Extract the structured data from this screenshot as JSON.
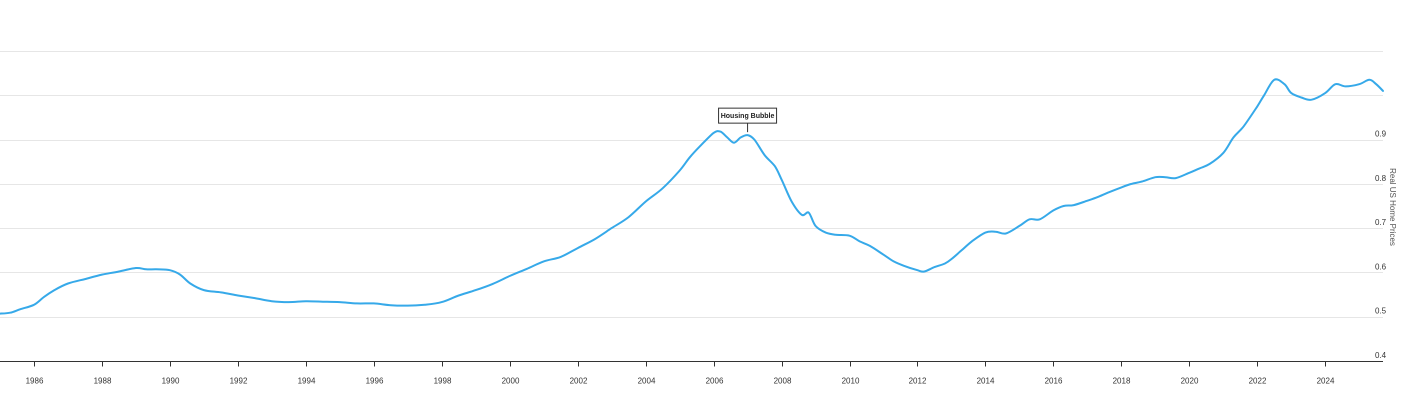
{
  "chart_data": {
    "type": "line",
    "ylabel": "Real US Home Prices",
    "xlim": [
      1985,
      2025.7
    ],
    "ylim": [
      0.4,
      1.1
    ],
    "y_ticks": [
      0.4,
      0.5,
      0.6,
      0.7,
      0.8,
      0.9
    ],
    "y_tick_labels": [
      "0.4",
      "0.5",
      "0.6",
      "0.7",
      "0.8",
      "0.9"
    ],
    "grid_y": [
      0.4,
      0.5,
      0.6,
      0.7,
      0.8,
      0.9,
      1.0,
      1.1
    ],
    "x_ticks": [
      1986,
      1988,
      1990,
      1992,
      1994,
      1996,
      1998,
      2000,
      2002,
      2004,
      2006,
      2008,
      2010,
      2012,
      2014,
      2016,
      2018,
      2020,
      2022,
      2024
    ],
    "x_tick_labels": [
      "1986",
      "1988",
      "1990",
      "1992",
      "1994",
      "1996",
      "1998",
      "2000",
      "2002",
      "2004",
      "2006",
      "2008",
      "2010",
      "2012",
      "2014",
      "2016",
      "2018",
      "2020",
      "2022",
      "2024"
    ],
    "grid": true,
    "y_axis_position": "right",
    "line_color": "#36a9e9",
    "series": [
      {
        "x": [
          1985.0,
          1985.3,
          1985.6,
          1986.0,
          1986.3,
          1986.6,
          1987.0,
          1987.5,
          1988.0,
          1988.5,
          1989.0,
          1989.3,
          1989.6,
          1990.0,
          1990.3,
          1990.6,
          1991.0,
          1991.5,
          1992.0,
          1992.5,
          1993.0,
          1993.5,
          1994.0,
          1994.5,
          1995.0,
          1995.5,
          1996.0,
          1996.5,
          1997.0,
          1997.5,
          1998.0,
          1998.5,
          1999.0,
          1999.5,
          2000.0,
          2000.5,
          2001.0,
          2001.5,
          2002.0,
          2002.5,
          2003.0,
          2003.5,
          2004.0,
          2004.5,
          2005.0,
          2005.3,
          2005.6,
          2006.0,
          2006.2,
          2006.4,
          2006.6,
          2006.8,
          2007.0,
          2007.2,
          2007.5,
          2007.8,
          2008.0,
          2008.3,
          2008.6,
          2008.8,
          2009.0,
          2009.3,
          2009.6,
          2010.0,
          2010.3,
          2010.6,
          2011.0,
          2011.3,
          2011.6,
          2012.0,
          2012.2,
          2012.5,
          2012.8,
          2013.0,
          2013.3,
          2013.6,
          2014.0,
          2014.3,
          2014.6,
          2015.0,
          2015.3,
          2015.6,
          2016.0,
          2016.3,
          2016.6,
          2017.0,
          2017.3,
          2017.6,
          2018.0,
          2018.3,
          2018.6,
          2019.0,
          2019.3,
          2019.6,
          2020.0,
          2020.3,
          2020.6,
          2021.0,
          2021.3,
          2021.6,
          2022.0,
          2022.2,
          2022.5,
          2022.8,
          2023.0,
          2023.3,
          2023.6,
          2024.0,
          2024.3,
          2024.6,
          2025.0,
          2025.3,
          2025.5,
          2025.7
        ],
        "y": [
          0.507,
          0.509,
          0.517,
          0.527,
          0.545,
          0.56,
          0.575,
          0.585,
          0.595,
          0.602,
          0.61,
          0.607,
          0.607,
          0.605,
          0.595,
          0.575,
          0.56,
          0.555,
          0.548,
          0.542,
          0.535,
          0.533,
          0.535,
          0.534,
          0.533,
          0.53,
          0.53,
          0.526,
          0.525,
          0.527,
          0.533,
          0.548,
          0.56,
          0.574,
          0.592,
          0.608,
          0.625,
          0.635,
          0.655,
          0.675,
          0.7,
          0.725,
          0.76,
          0.79,
          0.83,
          0.86,
          0.885,
          0.915,
          0.918,
          0.905,
          0.893,
          0.905,
          0.91,
          0.9,
          0.865,
          0.84,
          0.81,
          0.76,
          0.73,
          0.735,
          0.705,
          0.69,
          0.685,
          0.683,
          0.67,
          0.66,
          0.64,
          0.625,
          0.615,
          0.605,
          0.602,
          0.612,
          0.62,
          0.63,
          0.65,
          0.67,
          0.69,
          0.692,
          0.688,
          0.705,
          0.72,
          0.72,
          0.74,
          0.75,
          0.752,
          0.762,
          0.77,
          0.78,
          0.792,
          0.8,
          0.805,
          0.815,
          0.815,
          0.813,
          0.825,
          0.835,
          0.845,
          0.87,
          0.905,
          0.93,
          0.975,
          1.0,
          1.035,
          1.025,
          1.005,
          0.995,
          0.99,
          1.005,
          1.025,
          1.02,
          1.025,
          1.035,
          1.025,
          1.01
        ]
      }
    ],
    "annotations": [
      {
        "text": "Housing Bubble",
        "x": 2007.0,
        "y": 0.91
      }
    ]
  }
}
